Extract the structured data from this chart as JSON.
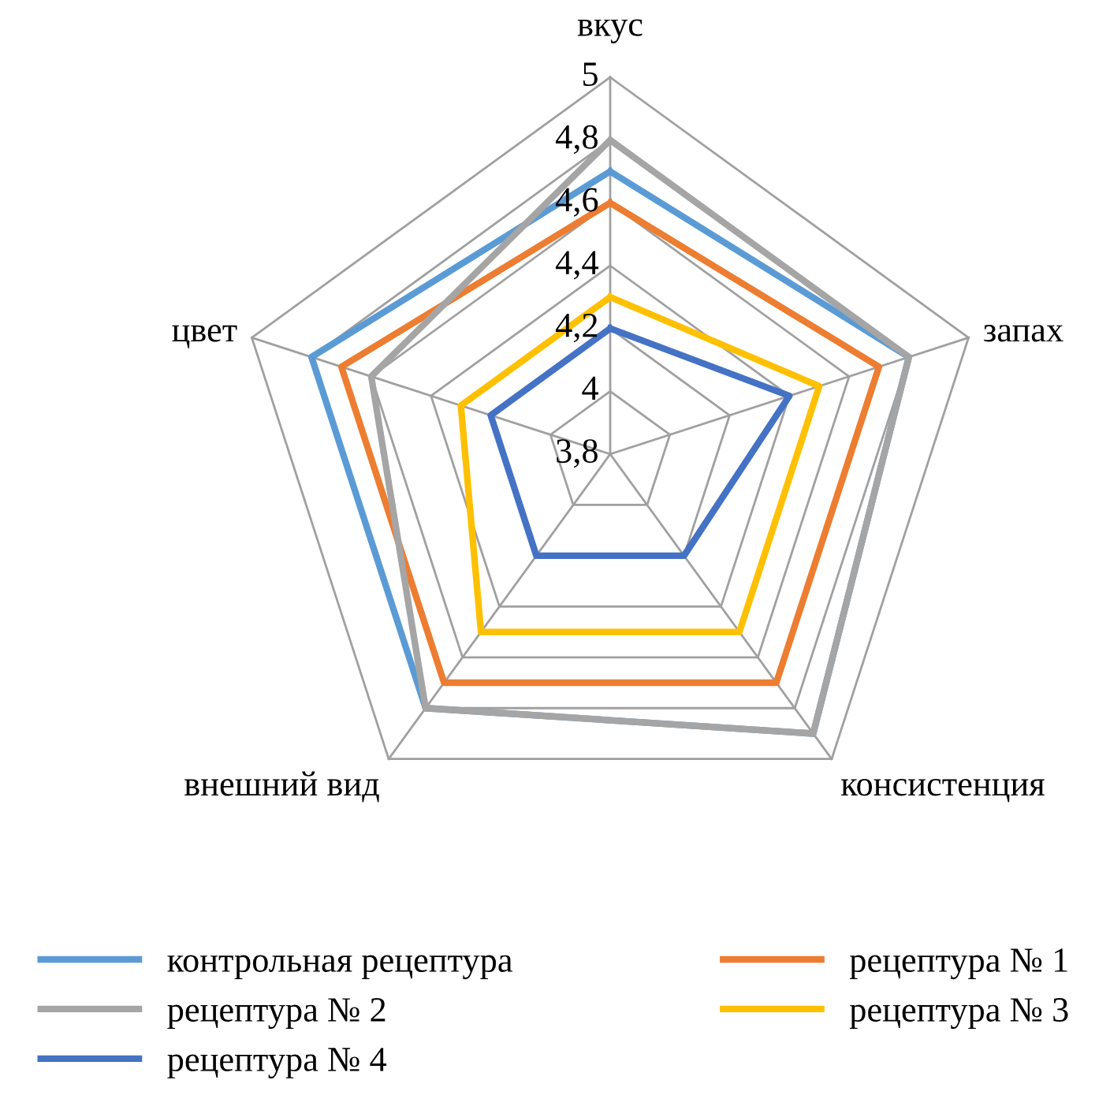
{
  "chart_data": {
    "type": "radar",
    "categories": [
      "вкус",
      "запах",
      "консистенция",
      "внешний вид",
      "цвет"
    ],
    "ylim": [
      3.8,
      5
    ],
    "yticks": [
      {
        "value": 3.8,
        "label": "3,8"
      },
      {
        "value": 4,
        "label": "4"
      },
      {
        "value": 4.2,
        "label": "4,2"
      },
      {
        "value": 4.4,
        "label": "4,4"
      },
      {
        "value": 4.6,
        "label": "4,6"
      },
      {
        "value": 4.8,
        "label": "4,8"
      },
      {
        "value": 5,
        "label": "5"
      }
    ],
    "grid": true,
    "legend": "bottom",
    "marker": "none",
    "line_style": "solid",
    "series": [
      {
        "name": "контрольная рецептура",
        "color": "#5b9bd5",
        "values": [
          4.7,
          4.8,
          4.9,
          4.8,
          4.8
        ]
      },
      {
        "name": "рецептура № 1",
        "color": "#ed7d31",
        "values": [
          4.6,
          4.7,
          4.7,
          4.7,
          4.7
        ]
      },
      {
        "name": "рецептура № 2",
        "color": "#a5a5a5",
        "values": [
          4.8,
          4.8,
          4.9,
          4.8,
          4.6
        ]
      },
      {
        "name": "рецептура № 3",
        "color": "#ffc000",
        "values": [
          4.3,
          4.5,
          4.5,
          4.5,
          4.3
        ]
      },
      {
        "name": "рецептура № 4",
        "color": "#4472c4",
        "values": [
          4.2,
          4.4,
          4.2,
          4.2,
          4.2
        ]
      }
    ]
  }
}
